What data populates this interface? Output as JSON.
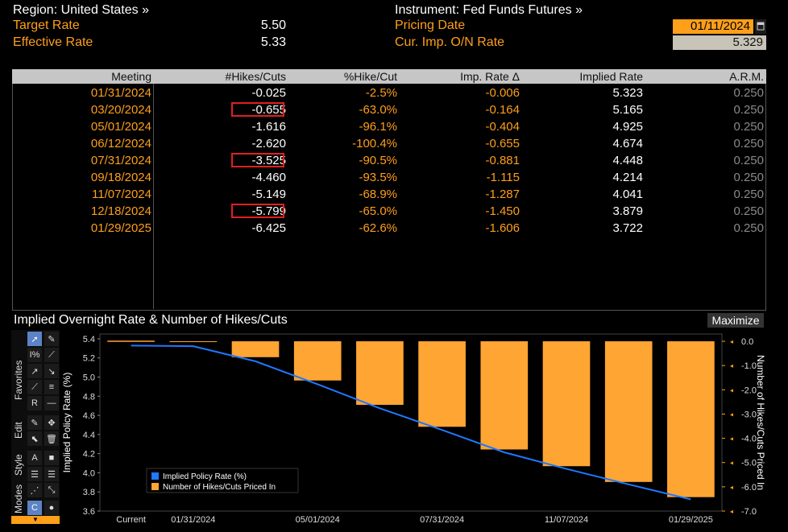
{
  "header": {
    "region": "Region: United States »",
    "target_rate_label": "Target Rate",
    "target_rate_value": "5.50",
    "effective_rate_label": "Effective Rate",
    "effective_rate_value": "5.33",
    "instrument": "Instrument: Fed Funds Futures »",
    "pricing_date_label": "Pricing Date",
    "pricing_date_value": "01/11/2024",
    "cur_imp_label": "Cur. Imp. O/N Rate",
    "cur_imp_value": "5.329"
  },
  "table": {
    "columns": [
      "Meeting",
      "#Hikes/Cuts",
      "%Hike/Cut",
      "Imp. Rate Δ",
      "Implied Rate",
      "A.R.M."
    ],
    "rows": [
      {
        "meeting": "01/31/2024",
        "hikes": "-0.025",
        "pct": "-2.5%",
        "delta": "-0.006",
        "implied": "5.323",
        "arm": "0.250"
      },
      {
        "meeting": "03/20/2024",
        "hikes": "-0.655",
        "pct": "-63.0%",
        "delta": "-0.164",
        "implied": "5.165",
        "arm": "0.250"
      },
      {
        "meeting": "05/01/2024",
        "hikes": "-1.616",
        "pct": "-96.1%",
        "delta": "-0.404",
        "implied": "4.925",
        "arm": "0.250"
      },
      {
        "meeting": "06/12/2024",
        "hikes": "-2.620",
        "pct": "-100.4%",
        "delta": "-0.655",
        "implied": "4.674",
        "arm": "0.250"
      },
      {
        "meeting": "07/31/2024",
        "hikes": "-3.525",
        "pct": "-90.5%",
        "delta": "-0.881",
        "implied": "4.448",
        "arm": "0.250"
      },
      {
        "meeting": "09/18/2024",
        "hikes": "-4.460",
        "pct": "-93.5%",
        "delta": "-1.115",
        "implied": "4.214",
        "arm": "0.250"
      },
      {
        "meeting": "11/07/2024",
        "hikes": "-5.149",
        "pct": "-68.9%",
        "delta": "-1.287",
        "implied": "4.041",
        "arm": "0.250"
      },
      {
        "meeting": "12/18/2024",
        "hikes": "-5.799",
        "pct": "-65.0%",
        "delta": "-1.450",
        "implied": "3.879",
        "arm": "0.250"
      },
      {
        "meeting": "01/29/2025",
        "hikes": "-6.425",
        "pct": "-62.6%",
        "delta": "-1.606",
        "implied": "3.722",
        "arm": "0.250"
      }
    ]
  },
  "chart_panel": {
    "title": "Implied Overnight Rate & Number of Hikes/Cuts",
    "maximize_label": "Maximize",
    "tabs": [
      "Favorites",
      "Edit",
      "Style",
      "Modes"
    ]
  },
  "chart_data": {
    "type": "bar",
    "x": [
      "Current",
      "01/31/2024",
      "03/20/2024",
      "05/01/2024",
      "06/12/2024",
      "07/31/2024",
      "09/18/2024",
      "11/07/2024",
      "12/18/2024",
      "01/29/2025"
    ],
    "x_tick_labels": [
      "Current",
      "01/31/2024",
      "05/01/2024",
      "07/31/2024",
      "11/07/2024",
      "01/29/2025"
    ],
    "series": [
      {
        "name": "Implied Policy Rate (%)",
        "type": "line",
        "axis": "left",
        "color": "#1f78ff",
        "values": [
          5.329,
          5.323,
          5.165,
          4.925,
          4.674,
          4.448,
          4.214,
          4.041,
          3.879,
          3.722
        ]
      },
      {
        "name": "Number of Hikes/Cuts Priced In",
        "type": "bar",
        "axis": "right",
        "color": "#ffa533",
        "values": [
          0,
          -0.025,
          -0.655,
          -1.616,
          -2.62,
          -3.525,
          -4.46,
          -5.149,
          -5.799,
          -6.425
        ]
      }
    ],
    "ylabel": "Implied Policy Rate (%)",
    "y2label": "Number of Hikes/Cuts Priced In",
    "ylim": [
      3.6,
      5.45
    ],
    "y2lim": [
      -7.0,
      0.3
    ],
    "yticks": [
      "5.4",
      "5.2",
      "5.0",
      "4.8",
      "4.6",
      "4.4",
      "4.2",
      "4.0",
      "3.8",
      "3.6"
    ],
    "y2ticks": [
      "0.0",
      "-1.0",
      "-2.0",
      "-3.0",
      "-4.0",
      "-5.0",
      "-6.0",
      "-7.0"
    ],
    "legend": "bottom-left",
    "grid": false
  }
}
